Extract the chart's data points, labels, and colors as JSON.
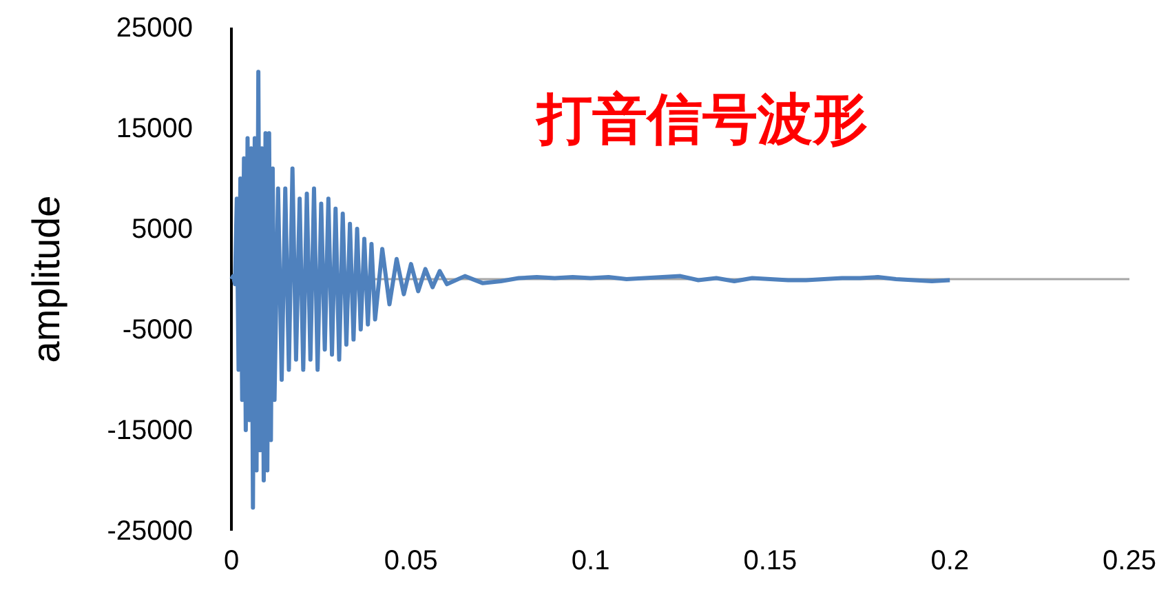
{
  "chart_data": {
    "type": "line",
    "title": "打音信号波形",
    "ylabel": "amplitude",
    "xlim": [
      0,
      0.25
    ],
    "xticks": [
      0,
      0.05,
      0.1,
      0.15,
      0.2,
      0.25
    ],
    "ylim": [
      -25000,
      25000
    ],
    "yticks": [
      -25000,
      -15000,
      -5000,
      5000,
      15000,
      25000
    ],
    "grid": false,
    "marker": "none",
    "line_style": "solid",
    "x": [
      0,
      0.0005,
      0.001,
      0.0015,
      0.002,
      0.0025,
      0.003,
      0.0035,
      0.004,
      0.0045,
      0.005,
      0.0055,
      0.006,
      0.0065,
      0.007,
      0.0075,
      0.008,
      0.0085,
      0.009,
      0.0095,
      0.01,
      0.0105,
      0.011,
      0.0115,
      0.012,
      0.013,
      0.014,
      0.015,
      0.016,
      0.017,
      0.018,
      0.019,
      0.02,
      0.021,
      0.022,
      0.023,
      0.024,
      0.025,
      0.026,
      0.027,
      0.028,
      0.029,
      0.03,
      0.031,
      0.032,
      0.033,
      0.034,
      0.035,
      0.036,
      0.037,
      0.038,
      0.039,
      0.04,
      0.042,
      0.044,
      0.046,
      0.048,
      0.05,
      0.052,
      0.054,
      0.056,
      0.058,
      0.06,
      0.065,
      0.07,
      0.075,
      0.08,
      0.085,
      0.09,
      0.095,
      0.1,
      0.105,
      0.11,
      0.115,
      0.12,
      0.125,
      0.13,
      0.135,
      0.14,
      0.145,
      0.15,
      0.155,
      0.16,
      0.165,
      0.17,
      0.175,
      0.18,
      0.185,
      0.19,
      0.195,
      0.2
    ],
    "series": [
      {
        "color": "#4f81bd",
        "values": [
          0,
          300,
          -500,
          8000,
          -9000,
          10000,
          -12000,
          12000,
          -15000,
          14000,
          -14000,
          13000,
          -22700,
          14000,
          -19000,
          20600,
          -17000,
          13000,
          -20000,
          14500,
          -19000,
          14500,
          -16000,
          11000,
          -12000,
          9000,
          -10000,
          9000,
          -9000,
          11000,
          -8000,
          8000,
          -9000,
          8500,
          -8000,
          9000,
          -9000,
          7500,
          -7000,
          8000,
          -7500,
          7000,
          -8000,
          6500,
          -6500,
          5500,
          -6000,
          5000,
          -5000,
          4000,
          -4500,
          3500,
          -4000,
          3000,
          -2500,
          2000,
          -1500,
          1500,
          -1200,
          1000,
          -800,
          800,
          -500,
          300,
          -400,
          -200,
          100,
          200,
          100,
          200,
          100,
          200,
          0,
          100,
          200,
          300,
          -100,
          100,
          -200,
          100,
          0,
          -100,
          -100,
          0,
          100,
          100,
          200,
          0,
          -100,
          -200,
          -100
        ]
      }
    ]
  }
}
